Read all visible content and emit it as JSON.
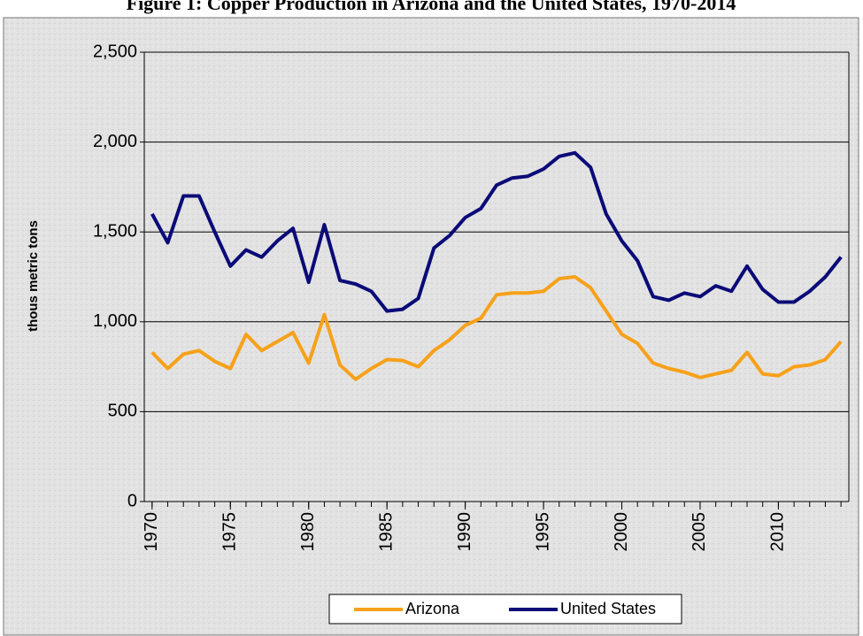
{
  "chart_data": {
    "type": "line",
    "title": "Figure 1: Copper Production in Arizona and the United States, 1970-2014",
    "y_label": "thous metric tons",
    "x": [
      1970,
      1971,
      1972,
      1973,
      1974,
      1975,
      1976,
      1977,
      1978,
      1979,
      1980,
      1981,
      1982,
      1983,
      1984,
      1985,
      1986,
      1987,
      1988,
      1989,
      1990,
      1991,
      1992,
      1993,
      1994,
      1995,
      1996,
      1997,
      1998,
      1999,
      2000,
      2001,
      2002,
      2003,
      2004,
      2005,
      2006,
      2007,
      2008,
      2009,
      2010,
      2011,
      2012,
      2013,
      2014
    ],
    "series": [
      {
        "name": "Arizona",
        "color": "#f7a11a",
        "values": [
          830,
          740,
          820,
          840,
          780,
          740,
          930,
          840,
          890,
          940,
          770,
          1040,
          760,
          680,
          740,
          790,
          785,
          750,
          840,
          900,
          980,
          1020,
          1150,
          1160,
          1160,
          1170,
          1240,
          1250,
          1190,
          1060,
          930,
          880,
          770,
          740,
          720,
          690,
          710,
          730,
          830,
          710,
          700,
          750,
          760,
          790,
          890
        ]
      },
      {
        "name": "United States",
        "color": "#0a0a78",
        "values": [
          1600,
          1440,
          1700,
          1700,
          1500,
          1310,
          1400,
          1360,
          1450,
          1520,
          1220,
          1540,
          1230,
          1210,
          1170,
          1060,
          1070,
          1130,
          1410,
          1480,
          1580,
          1630,
          1760,
          1800,
          1810,
          1850,
          1920,
          1940,
          1860,
          1600,
          1450,
          1340,
          1140,
          1120,
          1160,
          1140,
          1200,
          1170,
          1310,
          1180,
          1110,
          1110,
          1170,
          1250,
          1360
        ]
      }
    ],
    "xlim": [
      1969.5,
      2014.5
    ],
    "xticks": [
      1970,
      1975,
      1980,
      1985,
      1990,
      1995,
      2000,
      2005,
      2010
    ],
    "ylim": [
      0,
      2500
    ],
    "yticks": [
      0,
      {
        "value": 500,
        "label": "500"
      },
      {
        "value": 1000,
        "label": "1,000"
      },
      {
        "value": 1500,
        "label": "1,500"
      },
      {
        "value": 2000,
        "label": "2,000"
      },
      {
        "value": 2500,
        "label": "2,500"
      }
    ],
    "grid": true,
    "legend": "bottom"
  }
}
